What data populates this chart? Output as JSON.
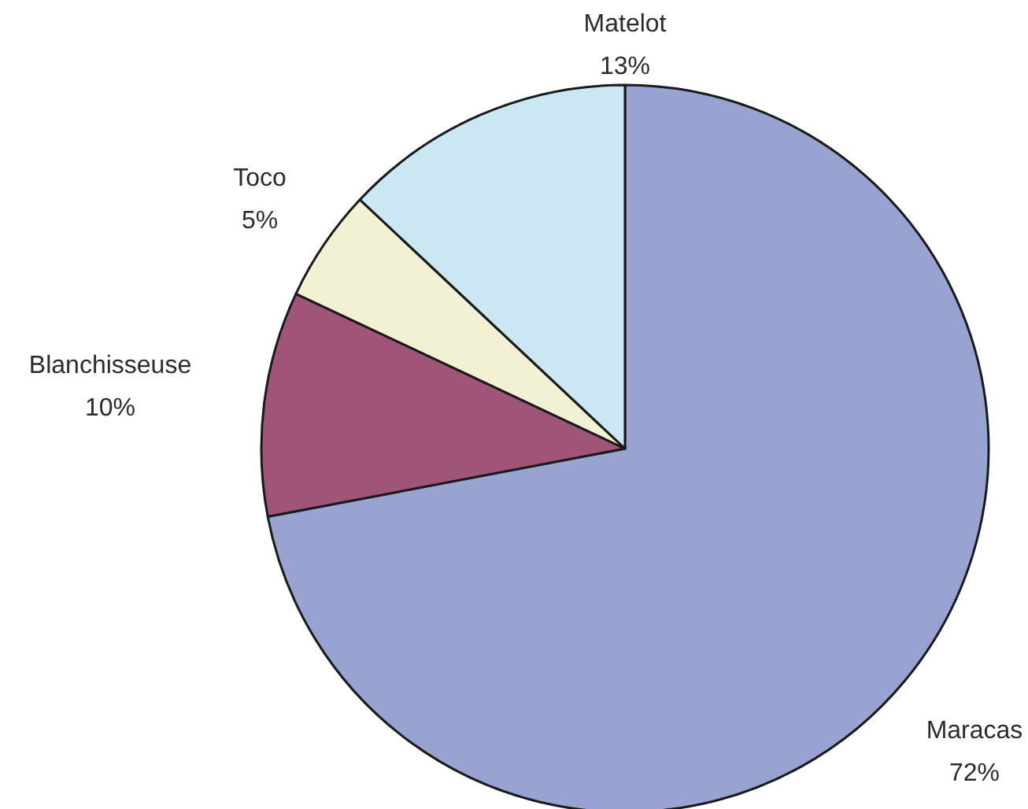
{
  "chart_data": {
    "type": "pie",
    "categories": [
      "Maracas",
      "Blanchisseuse",
      "Toco",
      "Matelot"
    ],
    "values": [
      72,
      10,
      5,
      13
    ],
    "colors": [
      "#99a3d2",
      "#a05478",
      "#f3f1d3",
      "#cbe7f3"
    ],
    "value_labels": [
      "72%",
      "10%",
      "5%",
      "13%"
    ]
  }
}
